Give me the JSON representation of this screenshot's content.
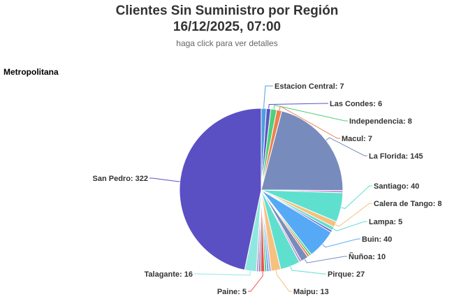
{
  "chart_data": {
    "type": "pie",
    "title": "Clientes Sin Suministro por Región",
    "title_line2": "16/12/2025, 07:00",
    "subtitle": "haga click para ver detalles",
    "region": "Metropolitana",
    "slices": [
      {
        "name": "Estacion Central",
        "value": 7,
        "color": "#4e9fde"
      },
      {
        "name": "Las Condes",
        "value": 6,
        "color": "#5b55c2"
      },
      {
        "name": "Independencia",
        "value": 8,
        "color": "#4fcf7a"
      },
      {
        "name": "Macul",
        "value": 7,
        "color": "#ef7f4e"
      },
      {
        "name": "La Florida",
        "value": 145,
        "color": "#778cbd"
      },
      {
        "name": "",
        "value": 3,
        "color": "#c58fd1"
      },
      {
        "name": "Santiago",
        "value": 40,
        "color": "#5fe0cf"
      },
      {
        "name": "Calera de Tango",
        "value": 8,
        "color": "#f6c17f"
      },
      {
        "name": "Lampa",
        "value": 5,
        "color": "#5fe0cf"
      },
      {
        "name": "",
        "value": 3,
        "color": "#6b5fd0"
      },
      {
        "name": "Buin",
        "value": 40,
        "color": "#56a9f5"
      },
      {
        "name": "",
        "value": 3,
        "color": "#4fcf7a"
      },
      {
        "name": "",
        "value": 3,
        "color": "#ef7f4e"
      },
      {
        "name": "Ñuñoa",
        "value": 10,
        "color": "#778cbd"
      },
      {
        "name": "",
        "value": 3,
        "color": "#c58fd1"
      },
      {
        "name": "Pirque",
        "value": 27,
        "color": "#5fe0cf"
      },
      {
        "name": "Maipu",
        "value": 13,
        "color": "#f6c17f"
      },
      {
        "name": "",
        "value": 3,
        "color": "#a6a1e2"
      },
      {
        "name": "",
        "value": 3,
        "color": "#56a9f5"
      },
      {
        "name": "",
        "value": 3,
        "color": "#4fcf7a"
      },
      {
        "name": "Paine",
        "value": 5,
        "color": "#ef4e4e"
      },
      {
        "name": "",
        "value": 3,
        "color": "#778cbd"
      },
      {
        "name": "",
        "value": 3,
        "color": "#c58fd1"
      },
      {
        "name": "Talagante",
        "value": 16,
        "color": "#8fe8e0"
      },
      {
        "name": "San Pedro",
        "value": 322,
        "color": "#5b4fc4"
      }
    ]
  }
}
